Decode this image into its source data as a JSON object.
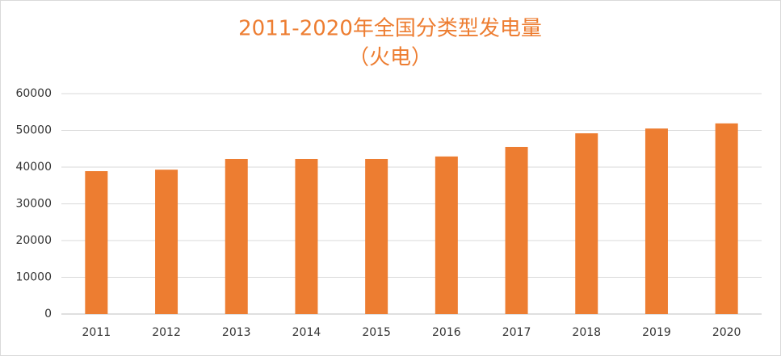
{
  "chart_data": {
    "type": "bar",
    "title": "2011-2020年全国分类型发电量",
    "subtitle": "（火电）",
    "categories": [
      "2011",
      "2012",
      "2013",
      "2014",
      "2015",
      "2016",
      "2017",
      "2018",
      "2019",
      "2020"
    ],
    "values": [
      38900,
      39300,
      42200,
      42200,
      42200,
      42900,
      45500,
      49200,
      50500,
      51900
    ],
    "color": "#ed7d31",
    "ylim": [
      0,
      60000
    ],
    "yticks": [
      0,
      10000,
      20000,
      30000,
      40000,
      50000,
      60000
    ],
    "grid": true
  }
}
